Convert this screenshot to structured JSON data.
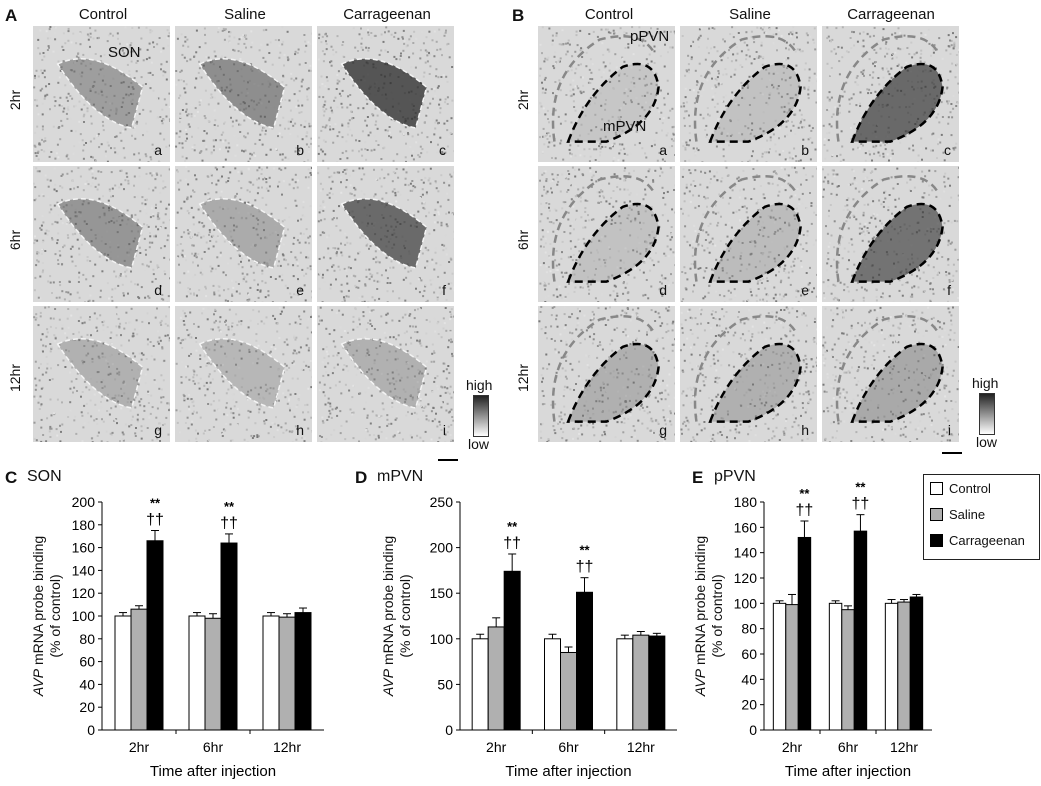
{
  "panelA": {
    "letter": "A",
    "columns": [
      "Control",
      "Saline",
      "Carrageenan"
    ],
    "rows": [
      "2hr",
      "6hr",
      "12hr"
    ],
    "sublabels": [
      "a",
      "b",
      "c",
      "d",
      "e",
      "f",
      "g",
      "h",
      "i"
    ],
    "region_label": "SON",
    "intensity": [
      [
        0.45,
        0.55,
        0.85
      ],
      [
        0.5,
        0.35,
        0.75
      ],
      [
        0.3,
        0.25,
        0.3
      ]
    ],
    "scale_high": "high",
    "scale_low": "low"
  },
  "panelB": {
    "letter": "B",
    "columns": [
      "Control",
      "Saline",
      "Carrageenan"
    ],
    "rows": [
      "2hr",
      "6hr",
      "12hr"
    ],
    "sublabels": [
      "a",
      "b",
      "c",
      "d",
      "e",
      "f",
      "g",
      "h",
      "i"
    ],
    "region_labels": [
      "pPVN",
      "mPVN"
    ],
    "intensity": [
      [
        0.15,
        0.2,
        0.75
      ],
      [
        0.2,
        0.25,
        0.7
      ],
      [
        0.35,
        0.35,
        0.4
      ]
    ],
    "scale_high": "high",
    "scale_low": "low"
  },
  "chart_data": [
    {
      "type": "bar",
      "panel": "C",
      "title": "SON",
      "ylabel_italic": "AVP",
      "ylabel": "mRNA probe binding",
      "ylabel2": "(% of control)",
      "xlabel": "Time after injection",
      "categories": [
        "2hr",
        "6hr",
        "12hr"
      ],
      "ylim": [
        0,
        200
      ],
      "yticks": [
        0,
        20,
        40,
        60,
        80,
        100,
        120,
        140,
        160,
        180,
        200
      ],
      "series": [
        {
          "name": "Control",
          "color": "#ffffff",
          "values": [
            100,
            100,
            100
          ],
          "errors": [
            3,
            3,
            3
          ]
        },
        {
          "name": "Saline",
          "color": "#b0b0b0",
          "values": [
            106,
            98,
            99
          ],
          "errors": [
            3,
            4,
            3
          ]
        },
        {
          "name": "Carrageenan",
          "color": "#000000",
          "values": [
            166,
            164,
            103
          ],
          "errors": [
            9,
            8,
            4
          ]
        }
      ],
      "annotations": [
        {
          "category": 0,
          "series": 2,
          "lines": [
            "**",
            "††"
          ]
        },
        {
          "category": 1,
          "series": 2,
          "lines": [
            "**",
            "††"
          ]
        }
      ]
    },
    {
      "type": "bar",
      "panel": "D",
      "title": "mPVN",
      "ylabel_italic": "AVP",
      "ylabel": "mRNA probe binding",
      "ylabel2": "(% of control)",
      "xlabel": "Time after injection",
      "categories": [
        "2hr",
        "6hr",
        "12hr"
      ],
      "ylim": [
        0,
        250
      ],
      "yticks": [
        0,
        50,
        100,
        150,
        200,
        250
      ],
      "series": [
        {
          "name": "Control",
          "color": "#ffffff",
          "values": [
            100,
            100,
            100
          ],
          "errors": [
            5,
            5,
            4
          ]
        },
        {
          "name": "Saline",
          "color": "#b0b0b0",
          "values": [
            113,
            85,
            104
          ],
          "errors": [
            10,
            6,
            4
          ]
        },
        {
          "name": "Carrageenan",
          "color": "#000000",
          "values": [
            174,
            151,
            103
          ],
          "errors": [
            19,
            16,
            3
          ]
        }
      ],
      "annotations": [
        {
          "category": 0,
          "series": 2,
          "lines": [
            "**",
            "††"
          ]
        },
        {
          "category": 1,
          "series": 2,
          "lines": [
            "**",
            "††"
          ]
        }
      ]
    },
    {
      "type": "bar",
      "panel": "E",
      "title": "pPVN",
      "ylabel_italic": "AVP",
      "ylabel": "mRNA probe binding",
      "ylabel2": "(% of control)",
      "xlabel": "Time after injection",
      "categories": [
        "2hr",
        "6hr",
        "12hr"
      ],
      "ylim": [
        0,
        180
      ],
      "yticks": [
        0,
        20,
        40,
        60,
        80,
        100,
        120,
        140,
        160,
        180
      ],
      "series": [
        {
          "name": "Control",
          "color": "#ffffff",
          "values": [
            100,
            100,
            100
          ],
          "errors": [
            2,
            2,
            3
          ]
        },
        {
          "name": "Saline",
          "color": "#b0b0b0",
          "values": [
            99,
            95,
            101
          ],
          "errors": [
            8,
            3,
            2
          ]
        },
        {
          "name": "Carrageenan",
          "color": "#000000",
          "values": [
            152,
            157,
            105
          ],
          "errors": [
            13,
            13,
            2
          ]
        }
      ],
      "annotations": [
        {
          "category": 0,
          "series": 2,
          "lines": [
            "**",
            "††"
          ]
        },
        {
          "category": 1,
          "series": 2,
          "lines": [
            "**",
            "††"
          ]
        }
      ],
      "legend": {
        "entries": [
          "Control",
          "Saline",
          "Carrageenan"
        ],
        "position": "top-right"
      }
    }
  ]
}
